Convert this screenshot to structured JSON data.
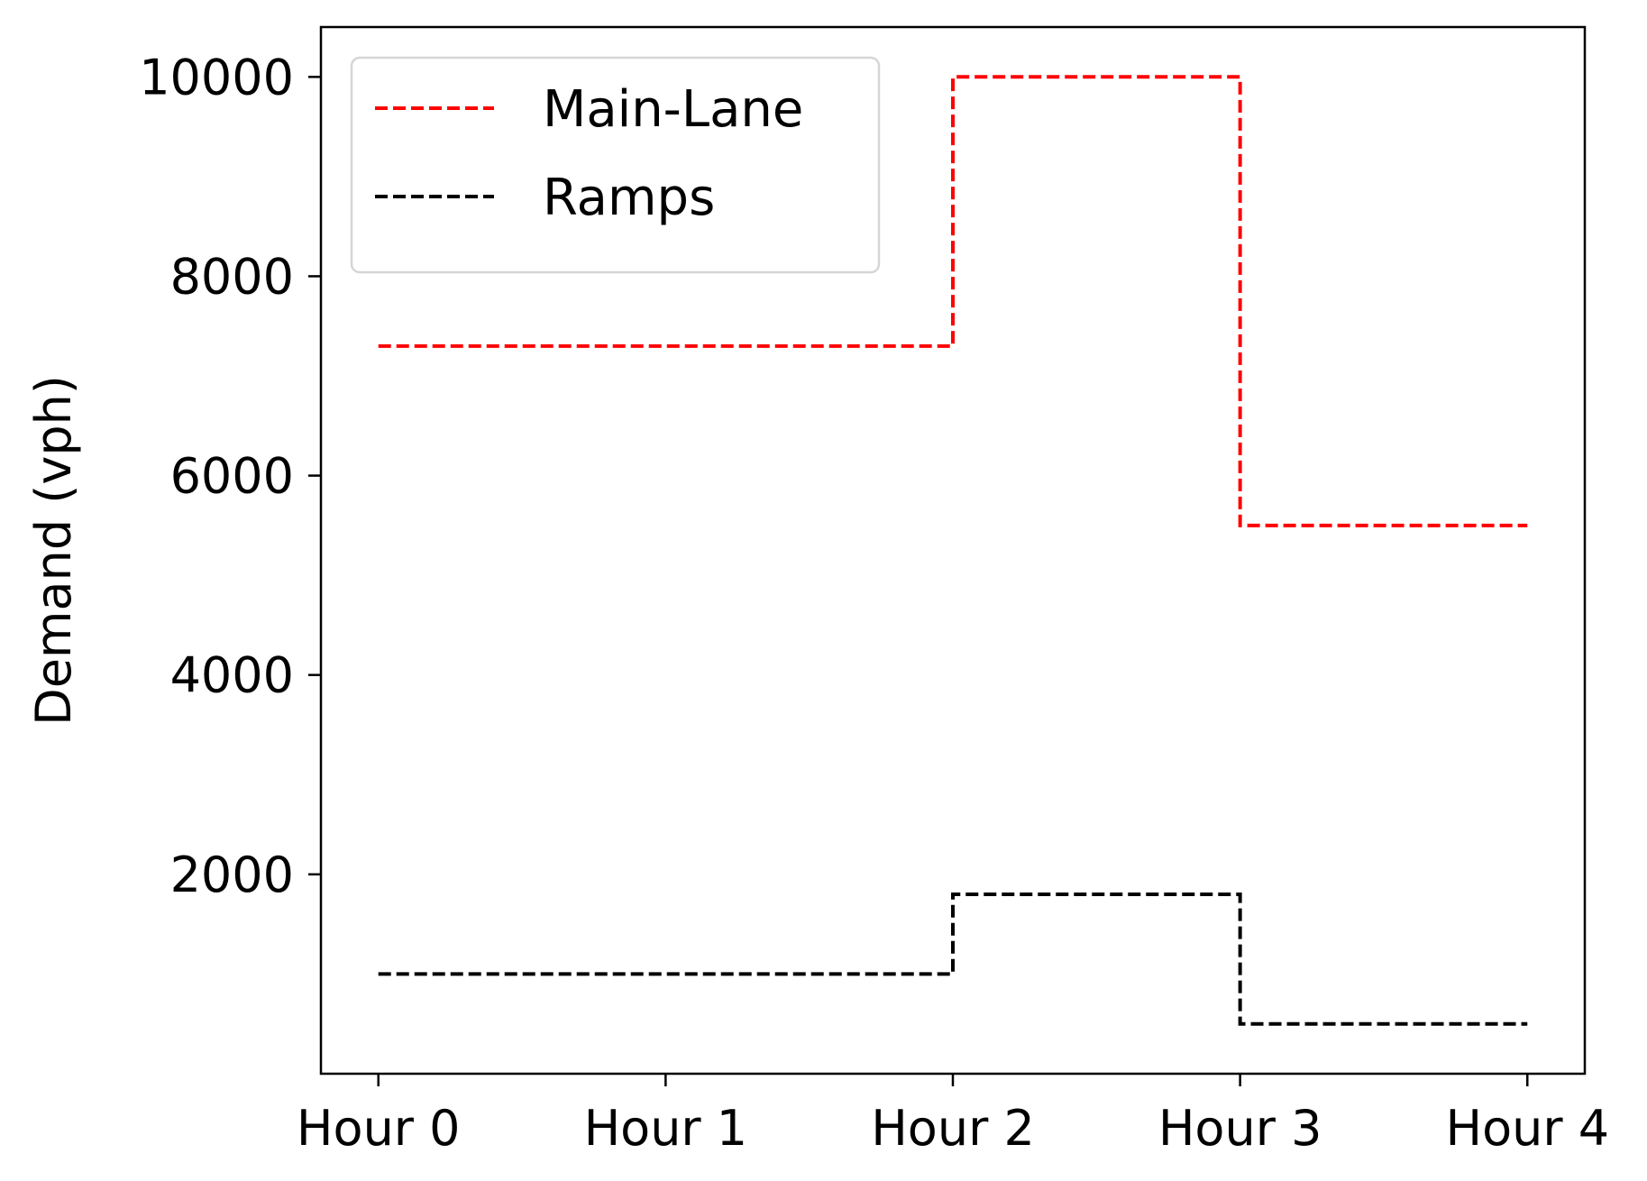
{
  "chart_data": {
    "type": "line",
    "step": "post",
    "title": "",
    "xlabel": "",
    "ylabel": "Demand (vph)",
    "x_ticks": [
      "Hour 0",
      "Hour 1",
      "Hour 2",
      "Hour 3",
      "Hour 4"
    ],
    "y_ticks": [
      2000,
      4000,
      6000,
      8000,
      10000
    ],
    "xlim": [
      -0.2,
      4.2
    ],
    "ylim": [
      0,
      10500
    ],
    "grid": false,
    "legend_position": "top-left",
    "series": [
      {
        "name": "Main-Lane",
        "color": "#ff0000",
        "line_style": "dashed",
        "x": [
          0,
          2,
          3,
          4
        ],
        "y": [
          7300,
          10000,
          5500,
          5500
        ]
      },
      {
        "name": "Ramps",
        "color": "#000000",
        "line_style": "dashed",
        "x": [
          0,
          2,
          3,
          4
        ],
        "y": [
          1000,
          1800,
          500,
          500
        ]
      }
    ]
  }
}
